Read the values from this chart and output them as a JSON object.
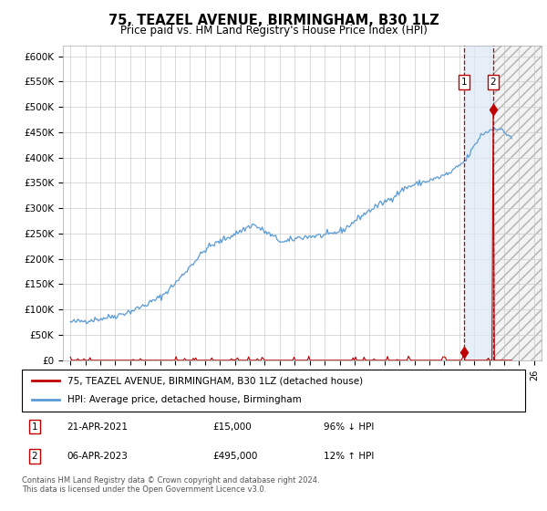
{
  "title": "75, TEAZEL AVENUE, BIRMINGHAM, B30 1LZ",
  "subtitle": "Price paid vs. HM Land Registry's House Price Index (HPI)",
  "ylim": [
    0,
    620000
  ],
  "yticks": [
    0,
    50000,
    100000,
    150000,
    200000,
    250000,
    300000,
    350000,
    400000,
    450000,
    500000,
    550000,
    600000
  ],
  "ytick_labels": [
    "£0",
    "£50K",
    "£100K",
    "£150K",
    "£200K",
    "£250K",
    "£300K",
    "£350K",
    "£400K",
    "£450K",
    "£500K",
    "£550K",
    "£600K"
  ],
  "hpi_color": "#5b9bd5",
  "price_color": "#c00000",
  "dashed_color": "#c00000",
  "highlight_fill": "#dce9f5",
  "hatch_color": "#c0c0c0",
  "legend_label_1": "75, TEAZEL AVENUE, BIRMINGHAM, B30 1LZ (detached house)",
  "legend_label_2": "HPI: Average price, detached house, Birmingham",
  "annotation_1_label": "21-APR-2021",
  "annotation_1_price": "£15,000",
  "annotation_1_hpi": "96% ↓ HPI",
  "annotation_2_label": "06-APR-2023",
  "annotation_2_price": "£495,000",
  "annotation_2_hpi": "12% ↑ HPI",
  "footer": "Contains HM Land Registry data © Crown copyright and database right 2024.\nThis data is licensed under the Open Government Licence v3.0.",
  "xlim": [
    1994.5,
    2026.5
  ],
  "x_event1": 2021.3,
  "x_event2": 2023.25,
  "sale1_x": 2021.3,
  "sale1_y": 15000,
  "sale2_x": 2023.25,
  "sale2_y": 495000
}
